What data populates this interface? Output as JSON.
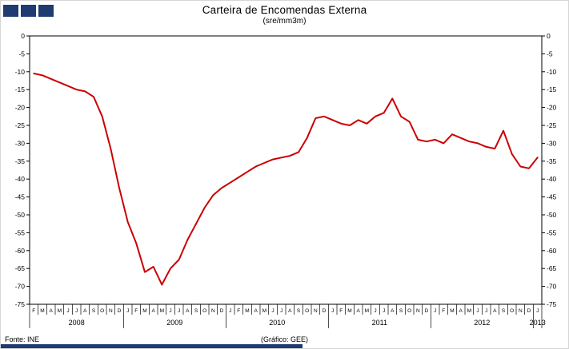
{
  "header": {
    "title": "Carteira de Encomendas  Externa",
    "subtitle": "(sre/mm3m)"
  },
  "footer": {
    "source": "Fonte: INE",
    "credit": "(Gráfico:  GEE)"
  },
  "colors": {
    "logo": "#203a72",
    "bottom_bar": "#203a72"
  },
  "chart_data": {
    "type": "line",
    "title": "Carteira de Encomendas Externa",
    "subtitle": "(sre/mm3m)",
    "legend": [],
    "grid": false,
    "ylim": [
      -75,
      0
    ],
    "y_tick_step": 5,
    "y_tick_labels": [
      "0",
      "-5",
      "-10",
      "-15",
      "-20",
      "-25",
      "-30",
      "-35",
      "-40",
      "-45",
      "-50",
      "-55",
      "-60",
      "-65",
      "-70",
      "-75"
    ],
    "line_color": "#cc0000",
    "month_labels": [
      "F",
      "M",
      "A",
      "M",
      "J",
      "J",
      "A",
      "S",
      "O",
      "N",
      "D",
      "J",
      "F",
      "M",
      "A",
      "M",
      "J",
      "J",
      "A",
      "S",
      "O",
      "N",
      "D",
      "J",
      "F",
      "M",
      "A",
      "M",
      "J",
      "J",
      "A",
      "S",
      "O",
      "N",
      "D",
      "J",
      "F",
      "M",
      "A",
      "M",
      "J",
      "J",
      "A",
      "S",
      "O",
      "N",
      "D",
      "J",
      "F",
      "M",
      "A",
      "M",
      "J",
      "J",
      "A",
      "S",
      "O",
      "N",
      "D",
      "J"
    ],
    "years": [
      {
        "label": "2008",
        "months": 11
      },
      {
        "label": "2009",
        "months": 12
      },
      {
        "label": "2010",
        "months": 12
      },
      {
        "label": "2011",
        "months": 12
      },
      {
        "label": "2012",
        "months": 12
      },
      {
        "label": "2013",
        "months": 1
      }
    ],
    "values": [
      -10.5,
      -11,
      -12,
      -13,
      -14,
      -15,
      -15.5,
      -17,
      -22.5,
      -31.5,
      -42.5,
      -52,
      -58,
      -66,
      -64.5,
      -69.5,
      -65,
      -62.5,
      -57,
      -52.5,
      -48,
      -44.5,
      -42.5,
      -41,
      -39.5,
      -38,
      -36.5,
      -35.5,
      -34.5,
      -34,
      -33.5,
      -32.5,
      -28.5,
      -23,
      -22.5,
      -23.5,
      -24.5,
      -25,
      -23.5,
      -24.5,
      -22.5,
      -21.5,
      -17.5,
      -22.5,
      -24,
      -29,
      -29.5,
      -29,
      -30,
      -27.5,
      -28.5,
      -29.5,
      -30,
      -31,
      -31.5,
      -26.5,
      -33,
      -36.5,
      -37,
      -34
    ]
  }
}
